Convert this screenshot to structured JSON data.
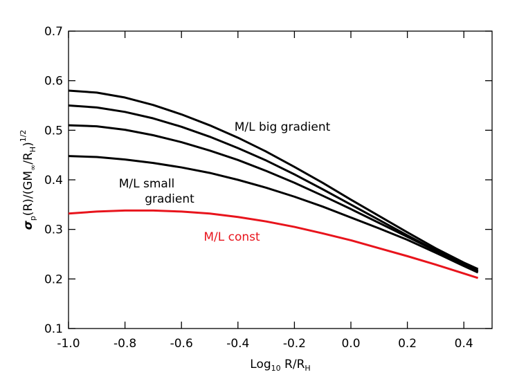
{
  "chart_data": {
    "type": "line",
    "x_label_parts": [
      "Log",
      "10",
      " R/R",
      "H"
    ],
    "y_label_parts": [
      "σ",
      "p",
      "(R)/(GM",
      "∞",
      "/R",
      "H",
      ")",
      "1/2"
    ],
    "x": [
      -1.0,
      -0.9,
      -0.8,
      -0.7,
      -0.6,
      -0.5,
      -0.4,
      -0.3,
      -0.2,
      -0.1,
      0.0,
      0.1,
      0.2,
      0.3,
      0.4,
      0.45
    ],
    "series": [
      {
        "color": "#000000",
        "values": [
          0.448,
          0.446,
          0.441,
          0.434,
          0.425,
          0.414,
          0.4,
          0.384,
          0.366,
          0.346,
          0.324,
          0.302,
          0.279,
          0.253,
          0.226,
          0.213
        ]
      },
      {
        "color": "#000000",
        "values": [
          0.51,
          0.508,
          0.501,
          0.49,
          0.476,
          0.459,
          0.44,
          0.418,
          0.394,
          0.368,
          0.341,
          0.313,
          0.285,
          0.257,
          0.229,
          0.215
        ]
      },
      {
        "color": "#000000",
        "values": [
          0.55,
          0.546,
          0.537,
          0.524,
          0.507,
          0.487,
          0.464,
          0.439,
          0.411,
          0.381,
          0.35,
          0.319,
          0.288,
          0.258,
          0.23,
          0.217
        ]
      },
      {
        "color": "#000000",
        "values": [
          0.58,
          0.576,
          0.566,
          0.551,
          0.532,
          0.51,
          0.485,
          0.457,
          0.426,
          0.394,
          0.36,
          0.327,
          0.294,
          0.262,
          0.233,
          0.22
        ]
      },
      {
        "color": "#e8141c",
        "values": [
          0.332,
          0.336,
          0.338,
          0.338,
          0.336,
          0.332,
          0.325,
          0.316,
          0.305,
          0.292,
          0.278,
          0.262,
          0.246,
          0.229,
          0.211,
          0.202
        ]
      }
    ],
    "annotations": [
      {
        "text": "M/L big gradient",
        "color": "#000000"
      },
      {
        "text": "M/L small",
        "color": "#000000"
      },
      {
        "text": "gradient",
        "color": "#000000"
      },
      {
        "text": "M/L const",
        "color": "#e8141c"
      }
    ],
    "xlim": [
      -1.0,
      0.5
    ],
    "xticks": [
      {
        "value": -1.0,
        "label": "-1.0"
      },
      -0.8,
      -0.6,
      -0.4,
      -0.2,
      {
        "value": 0.0,
        "label": "0.0"
      },
      0.2,
      0.4
    ],
    "ylim": [
      0.1,
      0.7
    ],
    "yticks": [
      0.1,
      0.2,
      0.3,
      0.4,
      0.5,
      0.6,
      0.7
    ],
    "grid": false
  }
}
